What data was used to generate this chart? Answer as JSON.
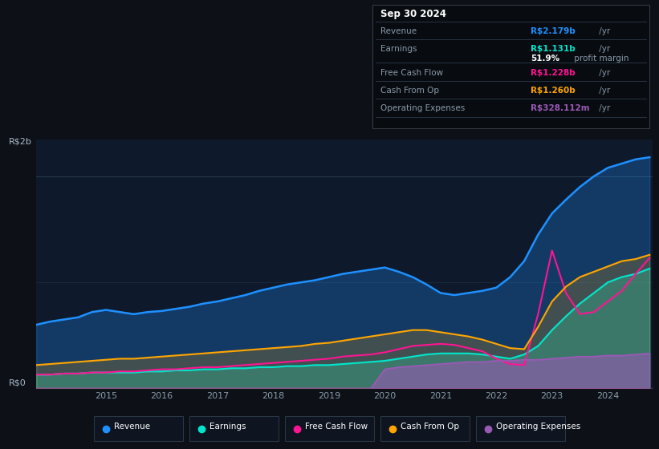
{
  "bg_color": "#0d1117",
  "plot_bg_color": "#0e1a2b",
  "colors": {
    "revenue": "#1e90ff",
    "earnings": "#00e5cc",
    "free_cash_flow": "#ff1493",
    "cash_from_op": "#ffa500",
    "op_expenses": "#9b59b6"
  },
  "tooltip": {
    "date": "Sep 30 2024",
    "revenue_label": "Revenue",
    "revenue_value": "R$2.179b",
    "earnings_label": "Earnings",
    "earnings_value": "R$1.131b",
    "profit_margin": "51.9%",
    "profit_margin_suffix": " profit margin",
    "fcf_label": "Free Cash Flow",
    "fcf_value": "R$1.228b",
    "cfop_label": "Cash From Op",
    "cfop_value": "R$1.260b",
    "opex_label": "Operating Expenses",
    "opex_value": "R$328.112m"
  },
  "legend": [
    {
      "label": "Revenue",
      "color": "#1e90ff"
    },
    {
      "label": "Earnings",
      "color": "#00e5cc"
    },
    {
      "label": "Free Cash Flow",
      "color": "#ff1493"
    },
    {
      "label": "Cash From Op",
      "color": "#ffa500"
    },
    {
      "label": "Operating Expenses",
      "color": "#9b59b6"
    }
  ],
  "ylabel_top": "R$2b",
  "ylabel_bottom": "R$0",
  "x": [
    2013.75,
    2014.0,
    2014.25,
    2014.5,
    2014.75,
    2015.0,
    2015.25,
    2015.5,
    2015.75,
    2016.0,
    2016.25,
    2016.5,
    2016.75,
    2017.0,
    2017.25,
    2017.5,
    2017.75,
    2018.0,
    2018.25,
    2018.5,
    2018.75,
    2019.0,
    2019.25,
    2019.5,
    2019.75,
    2020.0,
    2020.25,
    2020.5,
    2020.75,
    2021.0,
    2021.25,
    2021.5,
    2021.75,
    2022.0,
    2022.25,
    2022.5,
    2022.75,
    2023.0,
    2023.25,
    2023.5,
    2023.75,
    2024.0,
    2024.25,
    2024.5,
    2024.75
  ],
  "revenue": [
    0.6,
    0.63,
    0.65,
    0.67,
    0.72,
    0.74,
    0.72,
    0.7,
    0.72,
    0.73,
    0.75,
    0.77,
    0.8,
    0.82,
    0.85,
    0.88,
    0.92,
    0.95,
    0.98,
    1.0,
    1.02,
    1.05,
    1.08,
    1.1,
    1.12,
    1.14,
    1.1,
    1.05,
    0.98,
    0.9,
    0.88,
    0.9,
    0.92,
    0.95,
    1.05,
    1.2,
    1.45,
    1.65,
    1.78,
    1.9,
    2.0,
    2.08,
    2.12,
    2.16,
    2.18
  ],
  "earnings": [
    0.13,
    0.13,
    0.14,
    0.14,
    0.15,
    0.15,
    0.15,
    0.15,
    0.16,
    0.16,
    0.17,
    0.17,
    0.18,
    0.18,
    0.19,
    0.19,
    0.2,
    0.2,
    0.21,
    0.21,
    0.22,
    0.22,
    0.23,
    0.24,
    0.25,
    0.26,
    0.28,
    0.3,
    0.32,
    0.33,
    0.33,
    0.33,
    0.32,
    0.3,
    0.28,
    0.32,
    0.4,
    0.55,
    0.68,
    0.8,
    0.9,
    1.0,
    1.05,
    1.08,
    1.13
  ],
  "free_cash_flow": [
    0.13,
    0.13,
    0.14,
    0.14,
    0.15,
    0.15,
    0.16,
    0.16,
    0.17,
    0.18,
    0.18,
    0.19,
    0.2,
    0.2,
    0.21,
    0.22,
    0.23,
    0.24,
    0.25,
    0.26,
    0.27,
    0.28,
    0.3,
    0.31,
    0.32,
    0.34,
    0.37,
    0.4,
    0.41,
    0.42,
    0.41,
    0.38,
    0.35,
    0.28,
    0.23,
    0.22,
    0.7,
    1.3,
    0.9,
    0.7,
    0.72,
    0.82,
    0.92,
    1.08,
    1.23
  ],
  "cash_from_op": [
    0.22,
    0.23,
    0.24,
    0.25,
    0.26,
    0.27,
    0.28,
    0.28,
    0.29,
    0.3,
    0.31,
    0.32,
    0.33,
    0.34,
    0.35,
    0.36,
    0.37,
    0.38,
    0.39,
    0.4,
    0.42,
    0.43,
    0.45,
    0.47,
    0.49,
    0.51,
    0.53,
    0.55,
    0.55,
    0.53,
    0.51,
    0.49,
    0.46,
    0.42,
    0.38,
    0.37,
    0.58,
    0.82,
    0.96,
    1.05,
    1.1,
    1.15,
    1.2,
    1.22,
    1.26
  ],
  "op_expenses": [
    0.0,
    0.0,
    0.0,
    0.0,
    0.0,
    0.0,
    0.0,
    0.0,
    0.0,
    0.0,
    0.0,
    0.0,
    0.0,
    0.0,
    0.0,
    0.0,
    0.0,
    0.0,
    0.0,
    0.0,
    0.0,
    0.0,
    0.0,
    0.0,
    0.0,
    0.18,
    0.2,
    0.21,
    0.22,
    0.23,
    0.24,
    0.25,
    0.25,
    0.26,
    0.26,
    0.27,
    0.27,
    0.28,
    0.29,
    0.3,
    0.3,
    0.31,
    0.31,
    0.32,
    0.33
  ]
}
